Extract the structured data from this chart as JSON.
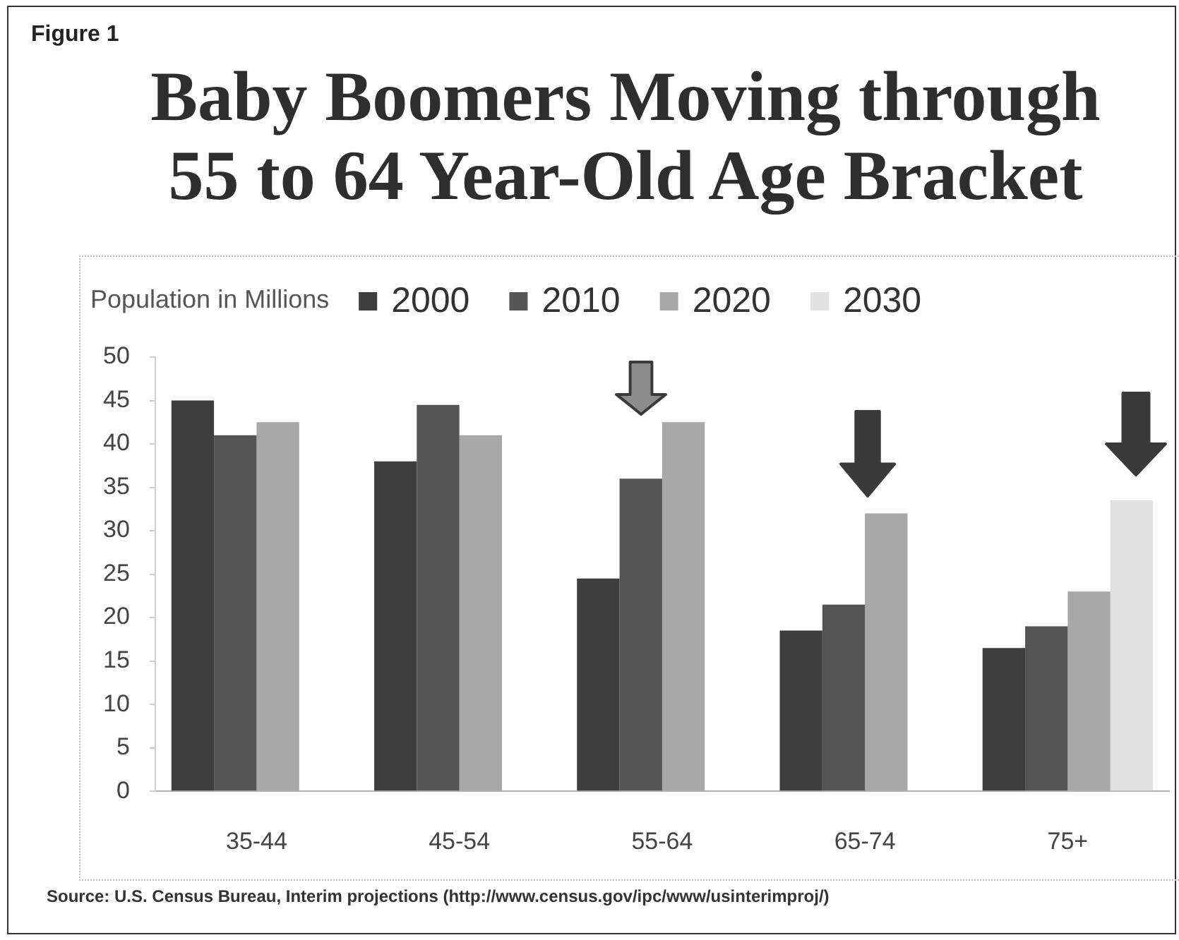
{
  "chart_data": {
    "type": "bar",
    "title": "Baby Boomers Moving through 55 to 64 Year-Old Age Bracket",
    "ylabel": "Population in Millions",
    "annotations": [
      "Figure 1",
      "Source: U.S. Census Bureau, Interim projections (http://www.census.gov/ipc/www/usinterimproj/)"
    ],
    "categories": [
      "35-44",
      "45-54",
      "55-64",
      "65-74",
      "75+"
    ],
    "series": [
      {
        "name": "2000",
        "color": "#3e3e3e",
        "values": [
          45,
          38,
          24.5,
          18.5,
          16.5
        ]
      },
      {
        "name": "2010",
        "color": "#555555",
        "values": [
          41,
          44.5,
          36,
          21.5,
          19
        ]
      },
      {
        "name": "2020",
        "color": "#a8a8a8",
        "values": [
          42.5,
          41,
          42.5,
          32,
          23
        ]
      },
      {
        "name": "2030",
        "color": "#e2e2e2",
        "values": [
          null,
          null,
          null,
          null,
          33.5
        ]
      }
    ],
    "ylim": [
      0,
      50
    ],
    "yticks": [
      0,
      5,
      10,
      15,
      20,
      25,
      30,
      35,
      40,
      45,
      50
    ],
    "grid": false,
    "legend": "top left"
  }
}
